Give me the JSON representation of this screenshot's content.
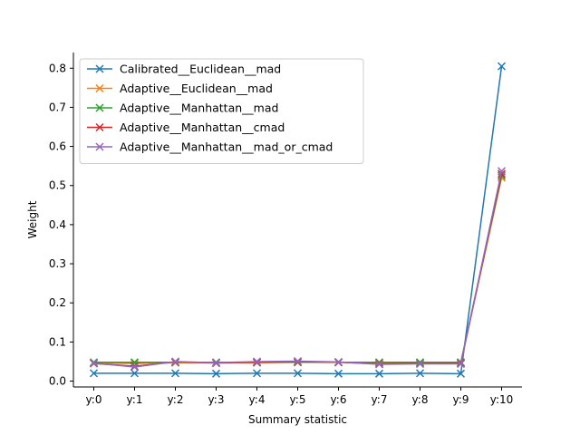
{
  "chart_data": {
    "type": "line",
    "title": "",
    "xlabel": "Summary statistic",
    "ylabel": "Weight",
    "categories": [
      "y:0",
      "y:1",
      "y:2",
      "y:3",
      "y:4",
      "y:5",
      "y:6",
      "y:7",
      "y:8",
      "y:9",
      "y:10"
    ],
    "ylim": [
      -0.015,
      0.84
    ],
    "yticks": [
      0.0,
      0.1,
      0.2,
      0.3,
      0.4,
      0.5,
      0.6,
      0.7,
      0.8
    ],
    "ytick_labels": [
      "0.0",
      "0.1",
      "0.2",
      "0.3",
      "0.4",
      "0.5",
      "0.6",
      "0.7",
      "0.8"
    ],
    "grid": false,
    "legend_position": "top-left",
    "marker": "x",
    "series": [
      {
        "name": "Calibrated__Euclidean__mad",
        "color": "#1f77b4",
        "values": [
          0.02,
          0.02,
          0.02,
          0.019,
          0.02,
          0.02,
          0.019,
          0.019,
          0.02,
          0.019,
          0.805
        ]
      },
      {
        "name": "Adaptive__Euclidean__mad",
        "color": "#ff7f0e",
        "values": [
          0.046,
          0.045,
          0.047,
          0.047,
          0.047,
          0.048,
          0.048,
          0.047,
          0.047,
          0.047,
          0.52
        ]
      },
      {
        "name": "Adaptive__Manhattan__mad",
        "color": "#2ca02c",
        "values": [
          0.048,
          0.048,
          0.048,
          0.048,
          0.048,
          0.048,
          0.048,
          0.048,
          0.048,
          0.048,
          0.525
        ]
      },
      {
        "name": "Adaptive__Manhattan__cmad",
        "color": "#d62728",
        "values": [
          0.045,
          0.038,
          0.049,
          0.046,
          0.048,
          0.049,
          0.048,
          0.044,
          0.045,
          0.045,
          0.53
        ]
      },
      {
        "name": "Adaptive__Manhattan__mad_or_cmad",
        "color": "#9467bd",
        "values": [
          0.046,
          0.036,
          0.05,
          0.047,
          0.05,
          0.051,
          0.049,
          0.043,
          0.044,
          0.044,
          0.537
        ]
      }
    ]
  }
}
